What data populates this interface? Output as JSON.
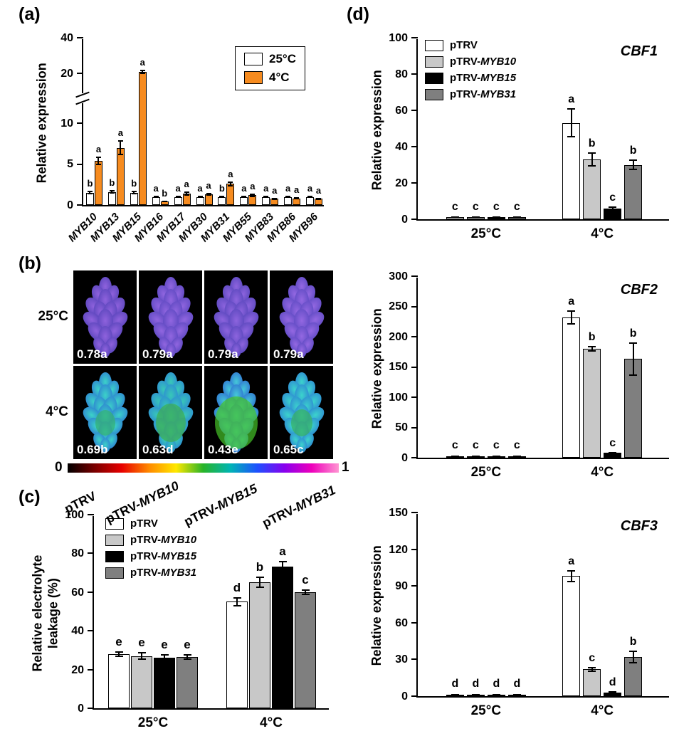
{
  "panels": {
    "a": {
      "label": "(a)"
    },
    "b": {
      "label": "(b)"
    },
    "c": {
      "label": "(c)"
    },
    "d": {
      "label": "(d)"
    }
  },
  "panel_b": {
    "row_labels": [
      "25°C",
      "4°C"
    ],
    "col_labels": [
      "pTRV",
      "pTRV-MYB10",
      "pTRV-MYB15",
      "pTRV-MYB31"
    ],
    "colorbar": {
      "min_label": "0",
      "max_label": "1",
      "colors": [
        "#000000",
        "#7a0000",
        "#e80000",
        "#ff8a00",
        "#ffe800",
        "#28b428",
        "#00b4b4",
        "#1e50ff",
        "#8800ee",
        "#ee00bb",
        "#ff96d2"
      ]
    },
    "cells": [
      [
        {
          "value": "0.78a",
          "base": "#8f62dd",
          "edge": "#4e3fb4"
        },
        {
          "value": "0.79a",
          "base": "#9166e0",
          "edge": "#5242ba"
        },
        {
          "value": "0.79a",
          "base": "#8d64de",
          "edge": "#4f41b6"
        },
        {
          "value": "0.79a",
          "base": "#9468e2",
          "edge": "#5344bc"
        }
      ],
      [
        {
          "value": "0.69b",
          "base": "#3cd2c8",
          "edge": "#2a6fd4",
          "patch": "#35b070",
          "patch_size": 0.25
        },
        {
          "value": "0.63d",
          "base": "#38c8b8",
          "edge": "#2a80d8",
          "patch": "#3dae4e",
          "patch_size": 0.55
        },
        {
          "value": "0.43e",
          "base": "#45c8d8",
          "edge": "#2a60d0",
          "patch": "#46c428",
          "patch_size": 0.9
        },
        {
          "value": "0.65c",
          "base": "#3cd4cc",
          "edge": "#2a78d4",
          "patch": "#38b060",
          "patch_size": 0.3
        }
      ]
    ]
  },
  "chart_data": [
    {
      "id": "a",
      "type": "bar",
      "title": "",
      "xlabel": "",
      "ylabel": "Relative expression",
      "categories": [
        "MYB10",
        "MYB13",
        "MYB15",
        "MYB16",
        "MYB17",
        "MYB30",
        "MYB31",
        "MYB55",
        "MYB83",
        "MYB86",
        "MYB96"
      ],
      "broken_axis": {
        "lower_max": 10,
        "upper_min": 20,
        "upper_max": 40
      },
      "yticks_lower": [
        0,
        5,
        10
      ],
      "yticks_upper": [
        20,
        40
      ],
      "ylim": [
        0,
        40
      ],
      "legend": true,
      "series": [
        {
          "name": "25°C",
          "color": "#ffffff",
          "values": [
            1.5,
            1.6,
            1.5,
            1.0,
            1.0,
            1.0,
            1.0,
            1.0,
            1.0,
            1.0,
            1.0
          ],
          "errors": [
            0.2,
            0.25,
            0.2,
            0.15,
            0.15,
            0.15,
            0.15,
            0.15,
            0.1,
            0.1,
            0.1
          ],
          "letters": [
            "b",
            "b",
            "b",
            "a",
            "a",
            "a",
            "b",
            "a",
            "a",
            "a",
            "a"
          ]
        },
        {
          "name": "4°C",
          "color": "#f68b1f",
          "values": [
            5.4,
            7.0,
            21.0,
            0.45,
            1.4,
            1.3,
            2.6,
            1.2,
            0.75,
            0.8,
            0.75
          ],
          "errors": [
            0.5,
            0.9,
            1.2,
            0.1,
            0.25,
            0.2,
            0.3,
            0.2,
            0.1,
            0.12,
            0.1
          ],
          "letters": [
            "a",
            "a",
            "a",
            "b",
            "a",
            "a",
            "a",
            "a",
            "a",
            "a",
            "a"
          ]
        }
      ]
    },
    {
      "id": "c",
      "type": "bar",
      "title": "",
      "xlabel": "",
      "ylabel": "Relative electrolyte leakage (%)",
      "categories": [
        "25°C",
        "4°C"
      ],
      "ylim": [
        0,
        100
      ],
      "yticks": [
        0,
        20,
        40,
        60,
        80,
        100
      ],
      "legend": true,
      "series": [
        {
          "name": "pTRV",
          "color": "#ffffff",
          "values": [
            28,
            55
          ],
          "errors": [
            1.5,
            2.5
          ],
          "letters": [
            "e",
            "d"
          ]
        },
        {
          "name": "pTRV-MYB10",
          "color": "#c8c8c8",
          "values": [
            27,
            65
          ],
          "errors": [
            2,
            3
          ],
          "letters": [
            "e",
            "b"
          ]
        },
        {
          "name": "pTRV-MYB15",
          "color": "#000000",
          "values": [
            26,
            73
          ],
          "errors": [
            2,
            3
          ],
          "letters": [
            "e",
            "a"
          ]
        },
        {
          "name": "pTRV-MYB31",
          "color": "#7f7f7f",
          "values": [
            26.5,
            60
          ],
          "errors": [
            1.5,
            1.5
          ],
          "letters": [
            "e",
            "c"
          ]
        }
      ]
    },
    {
      "id": "d1",
      "type": "bar",
      "title": "CBF1",
      "xlabel": "",
      "ylabel": "Relative expression",
      "categories": [
        "25°C",
        "4°C"
      ],
      "ylim": [
        0,
        100
      ],
      "yticks": [
        0,
        20,
        40,
        60,
        80,
        100
      ],
      "legend": true,
      "series": [
        {
          "name": "pTRV",
          "color": "#ffffff",
          "values": [
            1,
            53
          ],
          "errors": [
            0.3,
            8
          ],
          "letters": [
            "c",
            "a"
          ]
        },
        {
          "name": "pTRV-MYB10",
          "color": "#c8c8c8",
          "values": [
            1,
            33
          ],
          "errors": [
            0.3,
            4
          ],
          "letters": [
            "c",
            "b"
          ]
        },
        {
          "name": "pTRV-MYB15",
          "color": "#000000",
          "values": [
            1,
            6
          ],
          "errors": [
            0.2,
            1
          ],
          "letters": [
            "c",
            "c"
          ]
        },
        {
          "name": "pTRV-MYB31",
          "color": "#7f7f7f",
          "values": [
            1,
            30
          ],
          "errors": [
            0.3,
            3
          ],
          "letters": [
            "c",
            "b"
          ]
        }
      ]
    },
    {
      "id": "d2",
      "type": "bar",
      "title": "CBF2",
      "xlabel": "",
      "ylabel": "Relative expression",
      "categories": [
        "25°C",
        "4°C"
      ],
      "ylim": [
        0,
        300
      ],
      "yticks": [
        0,
        50,
        100,
        150,
        200,
        250,
        300
      ],
      "series": [
        {
          "name": "pTRV",
          "color": "#ffffff",
          "values": [
            2,
            232
          ],
          "errors": [
            0.5,
            12
          ],
          "letters": [
            "c",
            "a"
          ]
        },
        {
          "name": "pTRV-MYB10",
          "color": "#c8c8c8",
          "values": [
            2,
            180
          ],
          "errors": [
            0.5,
            5
          ],
          "letters": [
            "c",
            "b"
          ]
        },
        {
          "name": "pTRV-MYB15",
          "color": "#000000",
          "values": [
            1.5,
            8
          ],
          "errors": [
            0.3,
            2
          ],
          "letters": [
            "c",
            "c"
          ]
        },
        {
          "name": "pTRV-MYB31",
          "color": "#7f7f7f",
          "values": [
            2,
            163
          ],
          "errors": [
            0.5,
            28
          ],
          "letters": [
            "c",
            "b"
          ]
        }
      ]
    },
    {
      "id": "d3",
      "type": "bar",
      "title": "CBF3",
      "xlabel": "",
      "ylabel": "Relative expression",
      "categories": [
        "25°C",
        "4°C"
      ],
      "ylim": [
        0,
        150
      ],
      "yticks": [
        0,
        30,
        60,
        90,
        120,
        150
      ],
      "series": [
        {
          "name": "pTRV",
          "color": "#ffffff",
          "values": [
            1,
            98
          ],
          "errors": [
            0.3,
            5
          ],
          "letters": [
            "d",
            "a"
          ]
        },
        {
          "name": "pTRV-MYB10",
          "color": "#c8c8c8",
          "values": [
            1,
            22
          ],
          "errors": [
            0.3,
            2
          ],
          "letters": [
            "d",
            "c"
          ]
        },
        {
          "name": "pTRV-MYB15",
          "color": "#000000",
          "values": [
            0.8,
            3
          ],
          "errors": [
            0.2,
            1
          ],
          "letters": [
            "d",
            "d"
          ]
        },
        {
          "name": "pTRV-MYB31",
          "color": "#7f7f7f",
          "values": [
            1,
            32
          ],
          "errors": [
            0.3,
            5
          ],
          "letters": [
            "d",
            "b"
          ]
        }
      ]
    }
  ]
}
